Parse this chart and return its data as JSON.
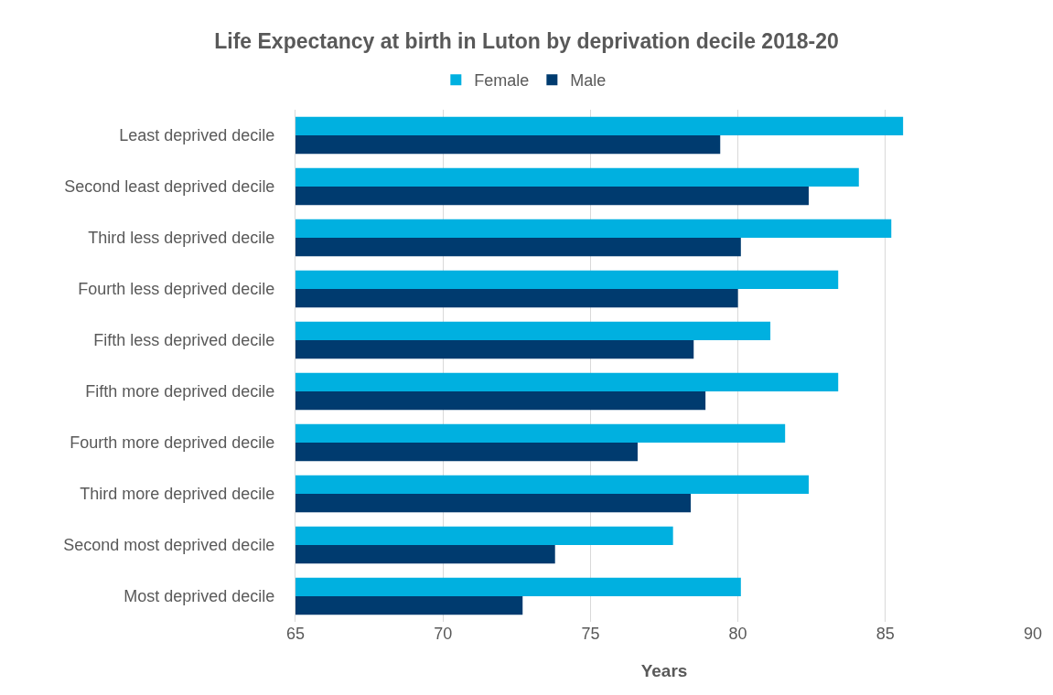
{
  "chart_data": {
    "type": "bar",
    "orientation": "horizontal",
    "title": "Life Expectancy at birth in Luton by deprivation decile 2018-20",
    "xlabel": "Years",
    "categories": [
      "Least deprived decile",
      "Second least deprived decile",
      "Third less deprived decile",
      "Fourth less deprived decile",
      "Fifth less deprived decile",
      "Fifth more deprived decile",
      "Fourth more deprived decile",
      "Third more deprived decile",
      "Second most deprived decile",
      "Most deprived decile"
    ],
    "series": [
      {
        "name": "Female",
        "color": "#00b0e0",
        "values": [
          85.6,
          84.1,
          85.2,
          83.4,
          81.1,
          83.4,
          81.6,
          82.4,
          77.8,
          80.1
        ]
      },
      {
        "name": "Male",
        "color": "#003b6f",
        "values": [
          79.4,
          82.4,
          80.1,
          80.0,
          78.5,
          78.9,
          76.6,
          78.4,
          73.8,
          72.7
        ]
      }
    ],
    "xlim": [
      65,
      90
    ],
    "xticks": [
      65,
      70,
      75,
      80,
      85,
      90
    ],
    "grid": "x",
    "legend": "top"
  }
}
